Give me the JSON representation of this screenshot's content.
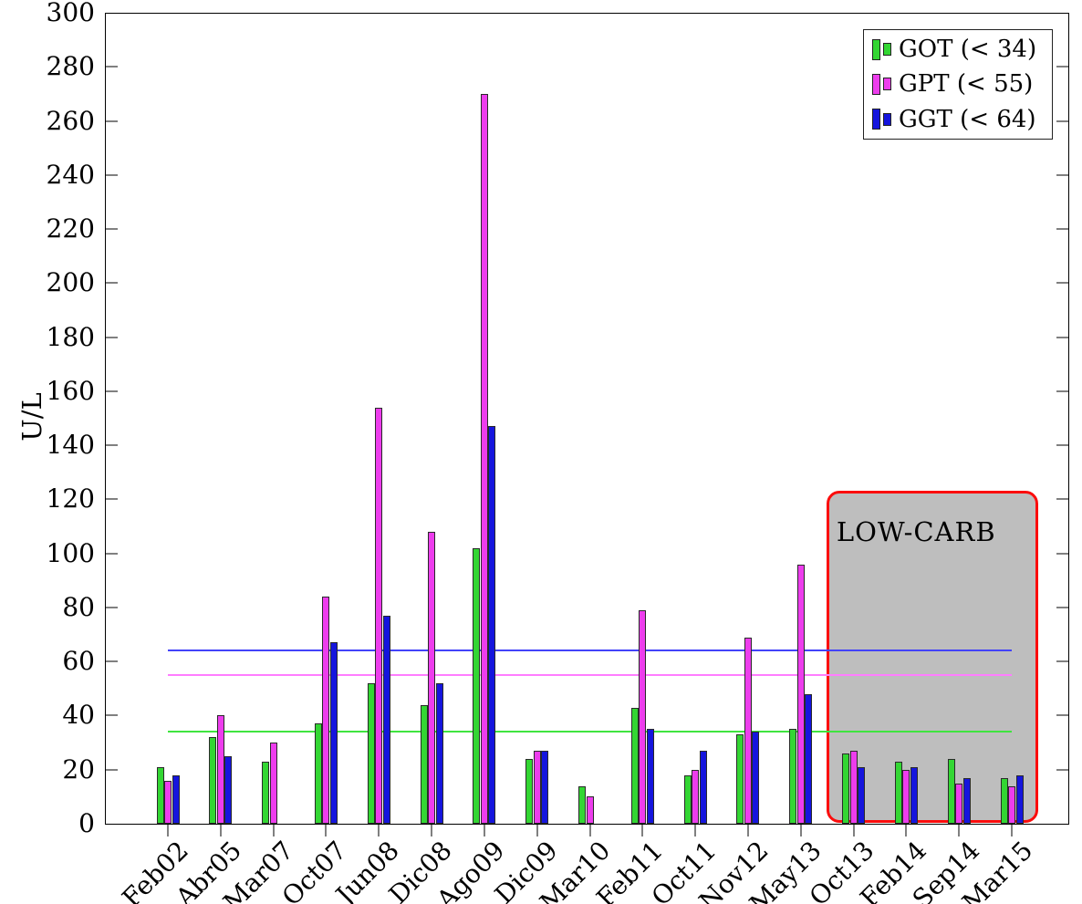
{
  "chart_data": {
    "type": "bar",
    "title": "",
    "xlabel": "",
    "ylabel": "U/L",
    "ylim": [
      0,
      300
    ],
    "ytick_step": 20,
    "grid": false,
    "legend_position": "top-right",
    "categories": [
      "Feb02",
      "Abr05",
      "Mar07",
      "Oct07",
      "Jun08",
      "Dic08",
      "Ago09",
      "Dic09",
      "Mar10",
      "Feb11",
      "Oct11",
      "Nov12",
      "May13",
      "Oct13",
      "Feb14",
      "Sep14",
      "Mar15"
    ],
    "series": [
      {
        "key": "got",
        "name": "GOT (< 34)",
        "color": "#33d633",
        "limit": 34,
        "values": [
          21,
          32,
          23,
          37,
          52,
          44,
          102,
          24,
          14,
          43,
          18,
          33,
          35,
          26,
          23,
          24,
          17
        ]
      },
      {
        "key": "gpt",
        "name": "GPT (< 55)",
        "color": "#ed3ded",
        "limit": 55,
        "values": [
          16,
          40,
          30,
          84,
          154,
          108,
          270,
          27,
          10,
          79,
          20,
          69,
          96,
          27,
          20,
          15,
          14
        ]
      },
      {
        "key": "ggt",
        "name": "GGT (< 64)",
        "color": "#1515dd",
        "limit": 64,
        "values": [
          18,
          25,
          null,
          67,
          77,
          52,
          147,
          27,
          null,
          35,
          27,
          34,
          48,
          21,
          21,
          17,
          18
        ]
      }
    ],
    "reference_lines": [
      {
        "value": 34,
        "color": "#3fe43f"
      },
      {
        "value": 55,
        "color": "#ff7dff"
      },
      {
        "value": 64,
        "color": "#4343fa"
      }
    ],
    "annotation_box": {
      "label": "LOW-CARB",
      "start_category": "Oct13",
      "end_category": "Mar15",
      "top_value": 120,
      "fill_color": "#bebebe",
      "border_color": "#fb0d0d"
    }
  }
}
